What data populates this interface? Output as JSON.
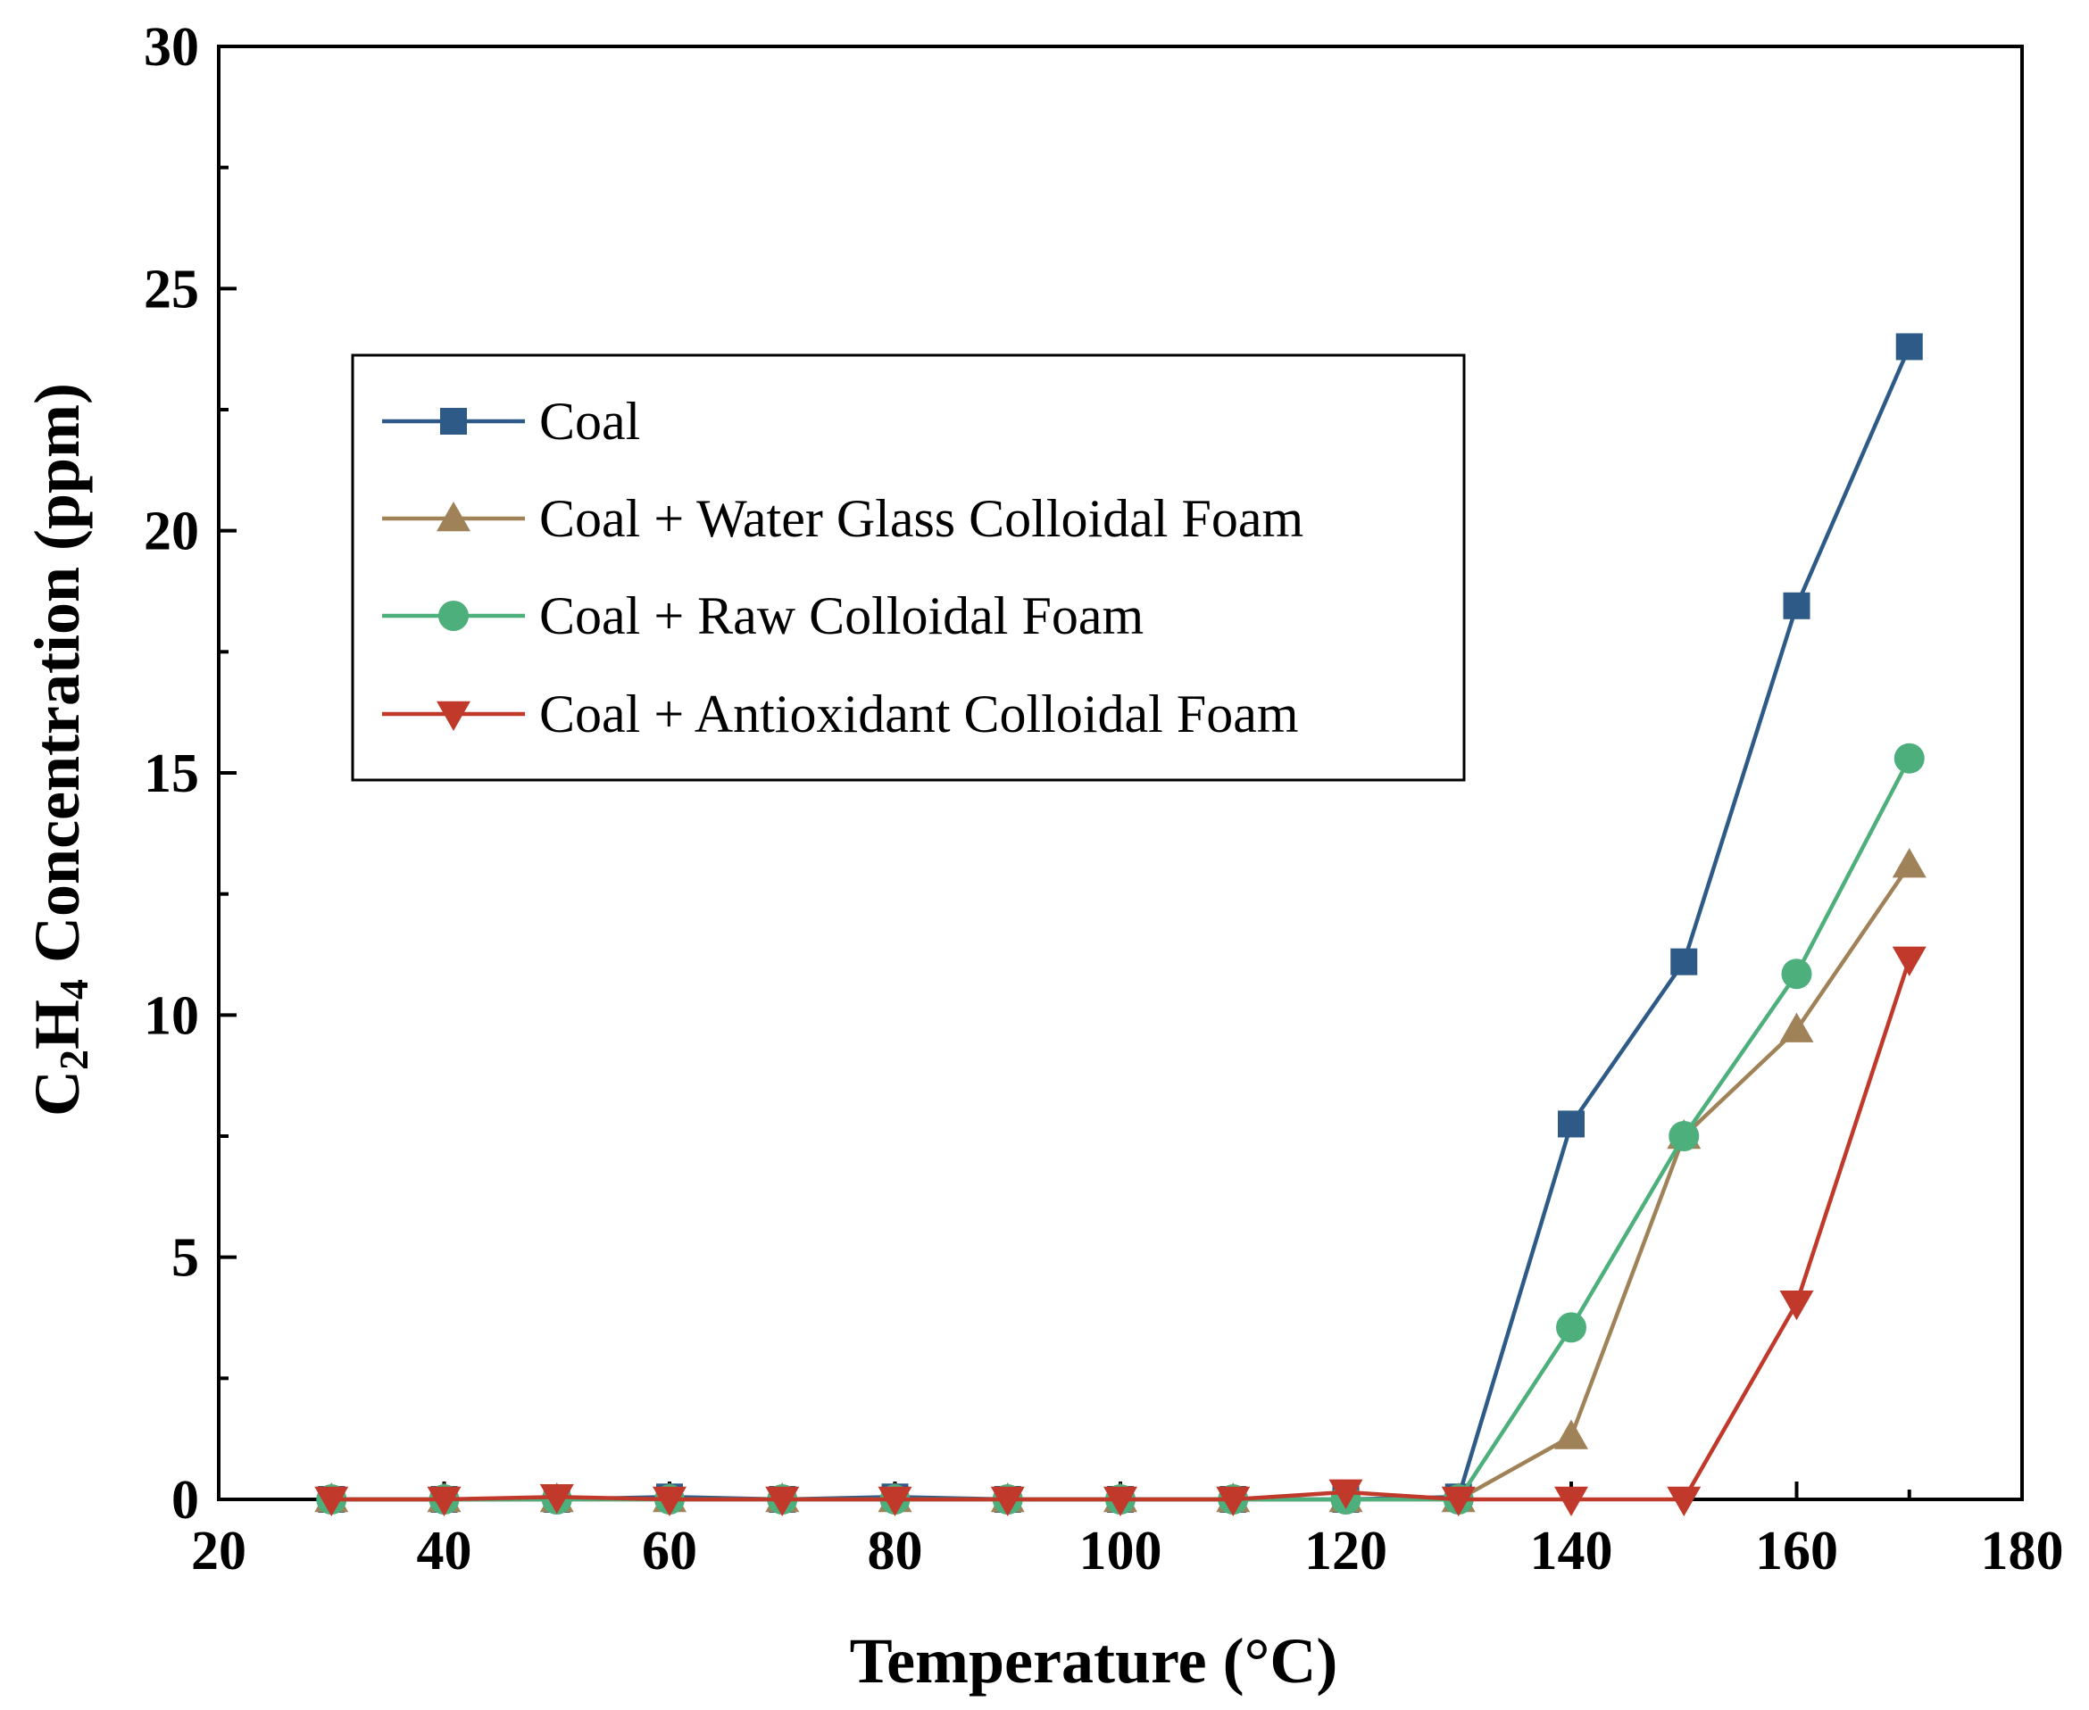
{
  "chart_data": {
    "type": "line",
    "title": "",
    "xlabel": "Temperature (°C)",
    "ylabel": {
      "prefix": "C",
      "sub1": "2",
      "middle": "H",
      "sub2": "4",
      "suffix": " Concentration (ppm)"
    },
    "xlim": [
      20,
      180
    ],
    "ylim": [
      0,
      30
    ],
    "xticks": [
      20,
      40,
      60,
      80,
      100,
      120,
      140,
      160,
      180
    ],
    "yticks": [
      0,
      5,
      10,
      15,
      20,
      25,
      30
    ],
    "grid": false,
    "legend_position": "upper-left",
    "x": [
      30,
      40,
      50,
      60,
      70,
      80,
      90,
      100,
      110,
      120,
      130,
      140,
      150,
      160,
      170
    ],
    "series": [
      {
        "name": "Coal",
        "color": "#2e5a87",
        "marker": "square",
        "values": [
          0,
          0,
          0,
          0.05,
          0,
          0.05,
          0,
          0,
          0,
          0,
          0.05,
          7.75,
          11.1,
          18.45,
          23.8
        ]
      },
      {
        "name": "Coal + Water Glass Colloidal Foam",
        "color": "#a08258",
        "marker": "triangle-up",
        "values": [
          0,
          0,
          0,
          0,
          0,
          0,
          0,
          0,
          0,
          0,
          0,
          1.3,
          7.5,
          9.7,
          13.1
        ]
      },
      {
        "name": "Coal + Raw Colloidal Foam",
        "color": "#4daf7c",
        "marker": "circle",
        "values": [
          0,
          0,
          0,
          0,
          0,
          0,
          0,
          0,
          0,
          0,
          0,
          3.55,
          7.5,
          10.85,
          15.3
        ]
      },
      {
        "name": "Coal + Antioxidant Colloidal Foam",
        "color": "#c0392b",
        "marker": "triangle-down",
        "values": [
          0,
          0,
          0.05,
          0,
          0,
          0,
          0,
          0,
          0,
          0.15,
          0,
          0,
          0,
          4.05,
          11.15
        ]
      }
    ]
  }
}
